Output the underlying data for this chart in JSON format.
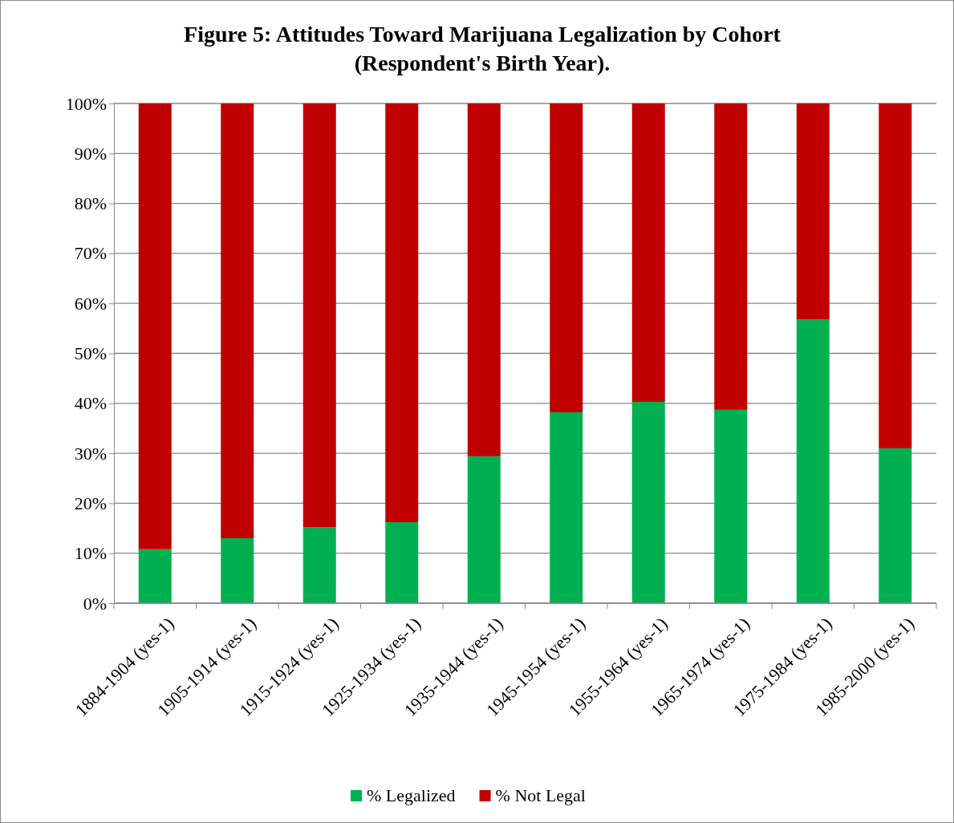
{
  "chart_data": {
    "type": "bar",
    "title": "Figure 5: Attitudes Toward Marijuana Legalization by Cohort\n(Respondent's Birth Year).",
    "stacked": true,
    "categories": [
      "1884-1904 (yes-1)",
      "1905-1914 (yes-1)",
      "1915-1924 (yes-1)",
      "1925-1934 (yes-1)",
      "1935-1944 (yes-1)",
      "1945-1954 (yes-1)",
      "1955-1964 (yes-1)",
      "1965-1974 (yes-1)",
      "1975-1984 (yes-1)",
      "1985-2000 (yes-1)"
    ],
    "series": [
      {
        "name": "% Legalized",
        "color": "#00b050",
        "values": [
          10.8,
          13.0,
          15.2,
          16.2,
          29.4,
          38.2,
          40.3,
          38.7,
          56.8,
          31.0
        ]
      },
      {
        "name": "% Not Legal",
        "color": "#c00000",
        "values": [
          89.2,
          87.0,
          84.8,
          83.8,
          70.6,
          61.8,
          59.7,
          61.3,
          43.2,
          69.0
        ]
      }
    ],
    "ylim": [
      0,
      100
    ],
    "yticks": [
      {
        "value": 0,
        "label": "0%"
      },
      {
        "value": 10,
        "label": "10%"
      },
      {
        "value": 20,
        "label": "20%"
      },
      {
        "value": 30,
        "label": "30%"
      },
      {
        "value": 40,
        "label": "40%"
      },
      {
        "value": 50,
        "label": "50%"
      },
      {
        "value": 60,
        "label": "60%"
      },
      {
        "value": 70,
        "label": "70%"
      },
      {
        "value": 80,
        "label": "80%"
      },
      {
        "value": 90,
        "label": "90%"
      },
      {
        "value": 100,
        "label": "100%"
      }
    ],
    "grid": "y",
    "legend": "bottom"
  }
}
